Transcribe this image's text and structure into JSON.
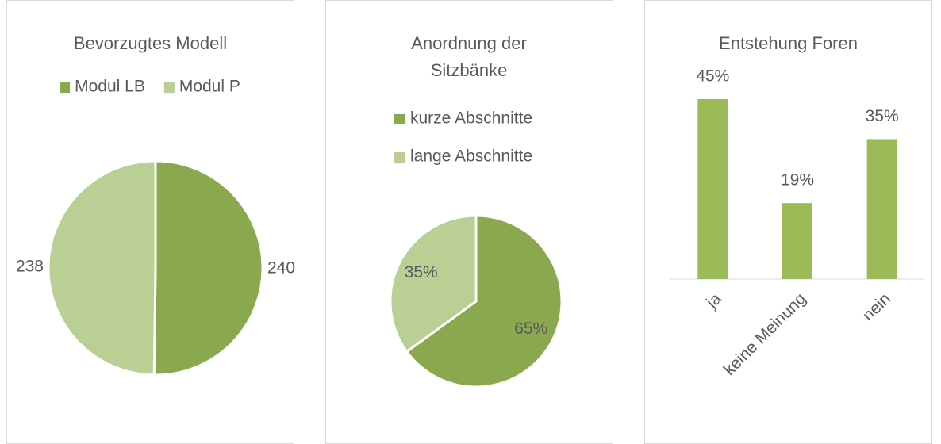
{
  "chart_data": [
    {
      "type": "pie",
      "title": "Bevorzugtes Modell",
      "categories": [
        "Modul LB",
        "Modul P"
      ],
      "values": [
        240,
        238
      ],
      "colors": [
        "#8aa84e",
        "#b9cf94"
      ],
      "legend": "top"
    },
    {
      "type": "pie",
      "title": "Anordnung der Sitzbänke",
      "categories": [
        "kurze Abschnitte",
        "lange Abschnitte"
      ],
      "values": [
        65,
        35
      ],
      "value_labels": [
        "65%",
        "35%"
      ],
      "colors": [
        "#8aa84e",
        "#b9cf94"
      ],
      "legend": "top"
    },
    {
      "type": "bar",
      "title": "Entstehung Foren",
      "categories": [
        "ja",
        "keine Meinung",
        "nein"
      ],
      "values": [
        45,
        19,
        35
      ],
      "value_labels": [
        "45%",
        "19%",
        "35%"
      ],
      "color": "#9bbb59"
    }
  ]
}
